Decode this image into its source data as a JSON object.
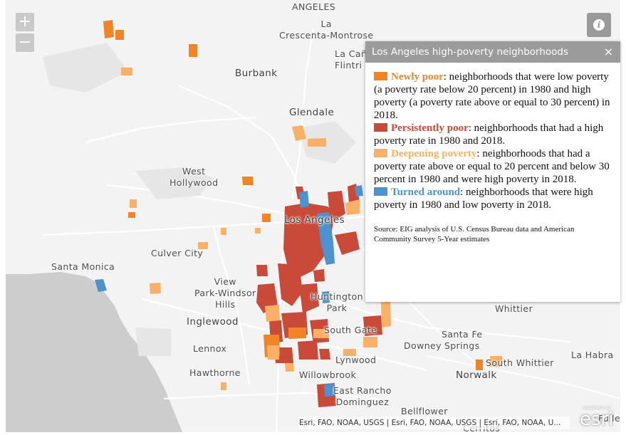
{
  "map": {
    "colors": {
      "land": "#f3f3f3",
      "water": "#cdcdcd",
      "roads": "#ffffff",
      "newly_poor": "#f08427",
      "persistently_poor": "#c94a38",
      "deepening_poverty": "#fbb067",
      "turned_around": "#4d92cd"
    },
    "places": {
      "angeles_top": "ANGELES",
      "crescenta": "La\nCrescenta-Montrose",
      "la_canada": "La Cañ\nFlintri",
      "burbank": "Burbank",
      "glendale": "Glendale",
      "west_hollywood": "West\nHollywood",
      "los_angeles": "Los Angeles",
      "culver_city": "Culver City",
      "santa_monica": "Santa Monica",
      "view_park": "View\nPark-Windsor\nHills",
      "huntington_park": "Huntington\nPark",
      "inglewood": "Inglewood",
      "south_gate": "South Gate",
      "lennox": "Lennox",
      "downey": "Downey",
      "santa_fe_springs": "Santa Fe\nSprings",
      "south_whittier": "South Whittier",
      "whittier": "Whittier",
      "la_habra": "La Habra",
      "hawthorne": "Hawthorne",
      "lynwood": "Lynwood",
      "willowbrook": "Willowbrook",
      "norwalk": "Norwalk",
      "east_rancho": "East Rancho\nDominguez",
      "bellflower": "Bellflower",
      "cerritos": "Cerritos",
      "fullerton": "Fulle"
    }
  },
  "controls": {
    "zoom_in": "+",
    "zoom_out": "−",
    "info_icon": "i"
  },
  "popup": {
    "title": "Los Angeles high-poverty neighborhoods",
    "close": "×",
    "legend": [
      {
        "term": "Newly poor",
        "text": ": neighborhoods that were low poverty (a poverty rate below 20 percent) in 1980 and high poverty (a poverty rate above or equal to 30 percent) in 2018.",
        "color": "#f08427"
      },
      {
        "term": "Persistently poor",
        "text": ": neighborhoods that had a high poverty rate in 1980 and 2018.",
        "color": "#c94a38"
      },
      {
        "term": "Deepening poverty",
        "text": ": neighborhoods that had a poverty rate above or equal to 20 percent and below 30 percent in 1980 and were high poverty in 2018.",
        "color": "#fbb067"
      },
      {
        "term": "Turned around",
        "text": ": neighborhoods that were high poverty in 1980 and low poverty in 2018.",
        "color": "#4d92cd"
      }
    ],
    "source": "Source: EIG analysis of U.S. Census Bureau data and American Community Survey 5-Year estimates"
  },
  "attribution": "Esri, FAO, NOAA, USGS | Esri, FAO, NOAA, USGS | Esri, FAO, NOAA, U...",
  "logo": {
    "powered": "POWERED BY",
    "name": "esri"
  }
}
